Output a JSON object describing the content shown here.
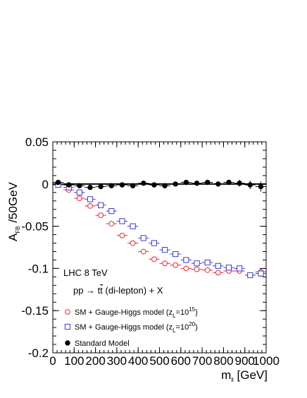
{
  "chart_data": {
    "type": "scatter",
    "title": "",
    "xlabel": {
      "main": "m",
      "sub": "ll",
      "unit": " [GeV]"
    },
    "ylabel": {
      "main": "A",
      "sub": "FB",
      "unit": " /50GeV"
    },
    "xlim": [
      0,
      1000
    ],
    "ylim": [
      -0.2,
      0.05
    ],
    "x_ticks": [
      0,
      100,
      200,
      300,
      400,
      500,
      600,
      700,
      800,
      900,
      1000
    ],
    "x_tick_labels": [
      "0",
      "100",
      "200",
      "300",
      "400",
      "500",
      "600",
      "700",
      "800",
      "900",
      "1000"
    ],
    "y_ticks": [
      0.05,
      0,
      -0.05,
      -0.1,
      -0.15,
      -0.2
    ],
    "y_tick_labels": [
      "0.05",
      "0",
      "-0.05",
      "-0.1",
      "-0.15",
      "-0.2"
    ],
    "grid": false,
    "annotations": {
      "experiment": "LHC 8 TeV",
      "process": {
        "pre": "pp → t",
        "tbar": "t",
        "post": " (di-lepton) + X"
      }
    },
    "legend_position": "bottom-left",
    "series": [
      {
        "name": {
          "pre": "SM + Gauge-Higgs model (z",
          "sub": "L",
          "mid": "=10",
          "sup": "15",
          "post": ")"
        },
        "marker": "open-circle",
        "color": "#e8262d",
        "x": [
          25,
          75,
          125,
          175,
          225,
          275,
          325,
          375,
          425,
          475,
          525,
          575,
          625,
          675,
          725,
          775,
          825,
          875,
          925,
          975
        ],
        "y": [
          0.0,
          -0.007,
          -0.017,
          -0.026,
          -0.037,
          -0.047,
          -0.061,
          -0.07,
          -0.08,
          -0.089,
          -0.094,
          -0.096,
          -0.1,
          -0.101,
          -0.102,
          -0.105,
          -0.103,
          -0.103,
          -0.108,
          -0.104
        ],
        "xerr": 25,
        "yerr": [
          0.001,
          0.001,
          0.001,
          0.001,
          0.001,
          0.001,
          0.001,
          0.001,
          0.001,
          0.001,
          0.001,
          0.001,
          0.001,
          0.002,
          0.002,
          0.002,
          0.002,
          0.003,
          0.003,
          0.004
        ]
      },
      {
        "name": {
          "pre": "SM + Gauge-Higgs model (z",
          "sub": "L",
          "mid": "=10",
          "sup": "20",
          "post": ")"
        },
        "marker": "open-square",
        "color": "#3a3ad0",
        "x": [
          25,
          75,
          125,
          175,
          225,
          275,
          325,
          375,
          425,
          475,
          525,
          575,
          625,
          675,
          725,
          775,
          825,
          875,
          925,
          975
        ],
        "y": [
          -0.001,
          -0.004,
          -0.01,
          -0.018,
          -0.025,
          -0.032,
          -0.044,
          -0.05,
          -0.064,
          -0.07,
          -0.078,
          -0.083,
          -0.09,
          -0.094,
          -0.093,
          -0.097,
          -0.099,
          -0.1,
          -0.108,
          -0.106
        ],
        "xerr": 25,
        "yerr": [
          0.001,
          0.001,
          0.001,
          0.001,
          0.001,
          0.001,
          0.001,
          0.001,
          0.001,
          0.001,
          0.001,
          0.001,
          0.001,
          0.002,
          0.002,
          0.002,
          0.002,
          0.003,
          0.003,
          0.004
        ]
      },
      {
        "name": {
          "pre": "Standard Model",
          "sub": "",
          "mid": "",
          "sup": "",
          "post": ""
        },
        "marker": "filled-circle",
        "color": "#000000",
        "x": [
          25,
          75,
          125,
          175,
          225,
          275,
          325,
          375,
          425,
          475,
          525,
          575,
          625,
          675,
          725,
          775,
          825,
          875,
          925,
          975
        ],
        "y": [
          0.002,
          -0.001,
          -0.002,
          -0.004,
          -0.003,
          -0.002,
          -0.001,
          -0.002,
          0.001,
          -0.001,
          -0.002,
          0.0,
          0.002,
          0.001,
          0.002,
          0.0,
          0.002,
          0.001,
          -0.001,
          -0.003
        ],
        "xerr": 25,
        "yerr": [
          0.001,
          0.001,
          0.001,
          0.001,
          0.001,
          0.001,
          0.001,
          0.001,
          0.001,
          0.002,
          0.002,
          0.002,
          0.002,
          0.002,
          0.003,
          0.003,
          0.003,
          0.004,
          0.005,
          0.006
        ]
      }
    ],
    "reference_line": {
      "y": 0,
      "color": "#000000"
    }
  }
}
